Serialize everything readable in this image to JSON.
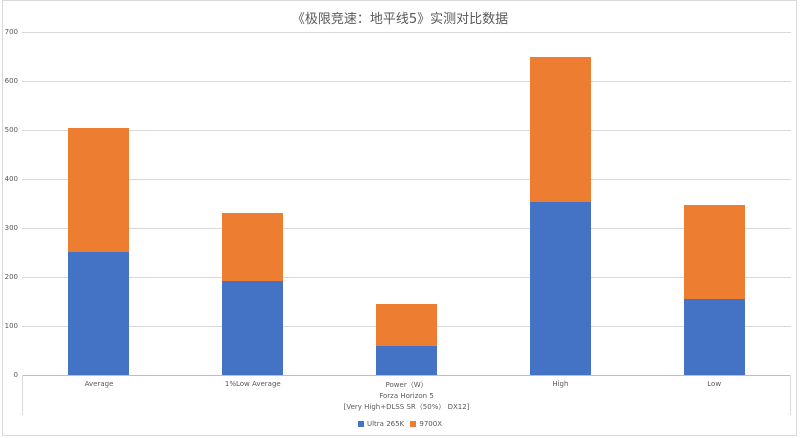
{
  "chart_data": {
    "type": "bar",
    "stacked": true,
    "title": "《极限竞速：地平线5》实测对比数据",
    "categories": [
      "Average",
      "1%Low Average",
      "Power（W）",
      "High",
      "Low"
    ],
    "group_label": [
      "Forza Horizon 5",
      "[Very High+DLSS SR（50%） DX12]"
    ],
    "series": [
      {
        "name": "Ultra 265K",
        "color": "#4472C4",
        "values": [
          251,
          192,
          59,
          353,
          155
        ]
      },
      {
        "name": "9700X",
        "color": "#ED7D31",
        "values": [
          253,
          139,
          86,
          296,
          192
        ]
      }
    ],
    "totals": [
      504,
      331,
      145,
      649,
      347
    ],
    "xlabel": "",
    "ylabel": "",
    "ylim": [
      0,
      700
    ],
    "yticks": [
      0,
      100,
      200,
      300,
      400,
      500,
      600,
      700
    ],
    "grid": true,
    "legend_position": "bottom"
  }
}
